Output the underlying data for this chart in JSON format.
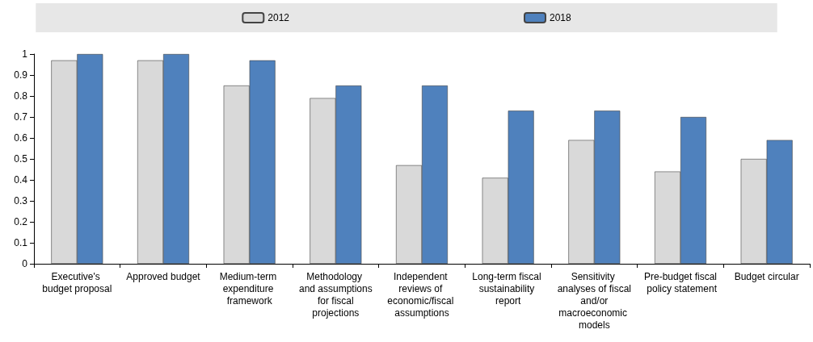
{
  "chart_data": {
    "type": "bar",
    "categories": [
      "Executive's budget proposal",
      "Approved budget",
      "Medium-term expenditure framework",
      "Methodology and assumptions for fiscal projections",
      "Independent reviews of economic/fiscal assumptions",
      "Long-term fiscal sustainability report",
      "Sensitivity analyses of fiscal and/or macroeconomic models",
      "Pre-budget fiscal policy statement",
      "Budget circular"
    ],
    "series": [
      {
        "name": "2012",
        "color": "#d9d9d9",
        "values": [
          0.97,
          0.97,
          0.85,
          0.79,
          0.47,
          0.41,
          0.59,
          0.44,
          0.5
        ]
      },
      {
        "name": "2018",
        "color": "#4f81bd",
        "values": [
          1,
          1,
          0.97,
          0.85,
          0.85,
          0.73,
          0.73,
          0.7,
          0.59
        ]
      }
    ],
    "ylim": [
      0,
      1
    ],
    "yticks": [
      0,
      0.1,
      0.2,
      0.3,
      0.4,
      0.5,
      0.6,
      0.7,
      0.8,
      0.9,
      1
    ],
    "grid": false,
    "legend": "top"
  }
}
